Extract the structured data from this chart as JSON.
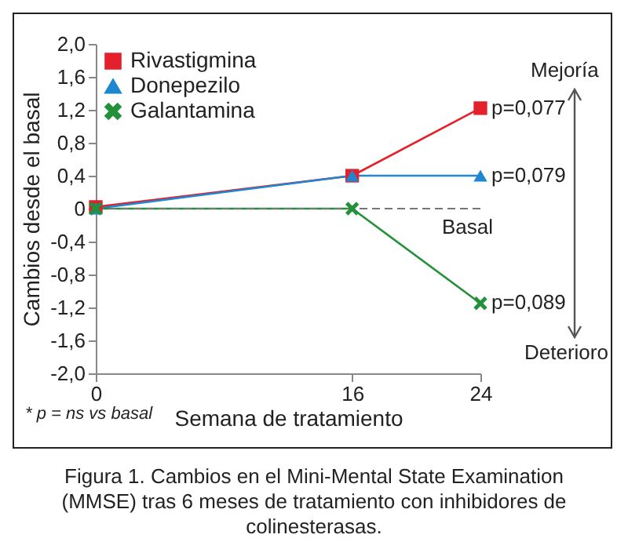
{
  "chart_data": {
    "type": "line",
    "title": "Figura 1. Cambios en el Mini-Mental State Examination (MMSE) tras 6 meses de tratamiento con inhibidores de colinesterasas.",
    "xlabel": "Semana de tratamiento",
    "ylabel": "Cambios desde el basal",
    "x": [
      0,
      16,
      24
    ],
    "series": [
      {
        "name": "Rivastigmina",
        "color": "#e3202b",
        "marker": "square",
        "values": [
          0.02,
          0.4,
          1.22
        ]
      },
      {
        "name": "Donepezilo",
        "color": "#1f86d0",
        "marker": "triangle",
        "values": [
          0,
          0.4,
          0.4
        ]
      },
      {
        "name": "Galantamina",
        "color": "#22913a",
        "marker": "cross",
        "values": [
          0,
          0,
          -1.15
        ]
      }
    ],
    "xlim": [
      0,
      24
    ],
    "xticks": [
      0,
      16,
      24
    ],
    "ylim": [
      -2,
      2
    ],
    "yticks": [
      {
        "value": -2,
        "label": "-2,0"
      },
      {
        "value": -1.6,
        "label": "-1,6"
      },
      {
        "value": -1.2,
        "label": "-1,2"
      },
      {
        "value": -0.8,
        "label": "-0,8"
      },
      {
        "value": -0.4,
        "label": "-0,4"
      },
      0,
      {
        "value": 0.4,
        "label": "0,4"
      },
      {
        "value": 0.8,
        "label": "0,8"
      },
      {
        "value": 1.2,
        "label": "1,2"
      },
      {
        "value": 1.6,
        "label": "1,6"
      },
      {
        "value": 2,
        "label": "2,0"
      }
    ],
    "ref_lines": [
      {
        "axis": "y",
        "value": 0,
        "label": "Basal",
        "color": "#777777",
        "line_style": "dashed"
      }
    ],
    "annotations": [
      "p=0,077",
      "p=0,079",
      "p=0,089",
      "Mejoría",
      "Deterioro",
      "* p = ns vs basal"
    ],
    "grid": false,
    "legend": "top left"
  }
}
